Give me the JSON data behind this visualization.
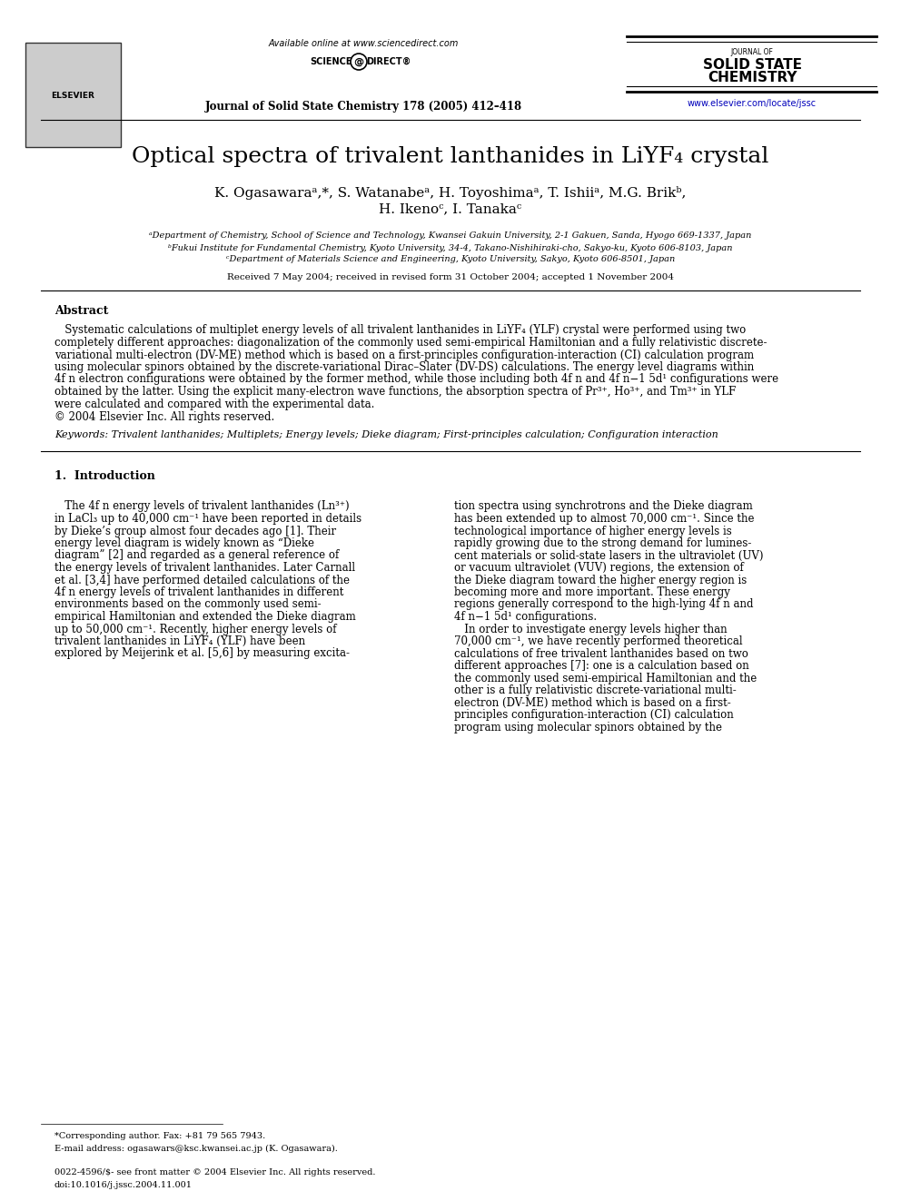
{
  "title": "Optical spectra of trivalent lanthanides in LiYF₄ crystal",
  "authors_line1": "K. Ogasawaraᵃ,*, S. Watanabeᵃ, H. Toyoshimaᵃ, T. Ishiiᵃ, M.G. Brikᵇ,",
  "authors_line2": "H. Ikenoᶜ, I. Tanakaᶜ",
  "affil_a": "ᵃDepartment of Chemistry, School of Science and Technology, Kwansei Gakuin University, 2-1 Gakuen, Sanda, Hyogo 669-1337, Japan",
  "affil_b": "ᵇFukui Institute for Fundamental Chemistry, Kyoto University, 34-4, Takano-Nishihiraki-cho, Sakyo-ku, Kyoto 606-8103, Japan",
  "affil_c": "ᶜDepartment of Materials Science and Engineering, Kyoto University, Sakyo, Kyoto 606-8501, Japan",
  "received": "Received 7 May 2004; received in revised form 31 October 2004; accepted 1 November 2004",
  "journal_header": "Journal of Solid State Chemistry 178 (2005) 412–418",
  "available_online": "Available online at www.sciencedirect.com",
  "journal_name_small": "JOURNAL OF",
  "journal_name_line2": "SOLID STATE",
  "journal_name_line3": "CHEMISTRY",
  "website": "www.elsevier.com/locate/jssc",
  "copyright": "© 2004 Elsevier Inc. All rights reserved.",
  "abstract_title": "Abstract",
  "keywords_text": "Keywords: Trivalent lanthanides; Multiplets; Energy levels; Dieke diagram; First-principles calculation; Configuration interaction",
  "section1_title": "1.  Introduction",
  "footnote_star": "*Corresponding author. Fax: +81 79 565 7943.",
  "footnote_email": "E-mail address: ogasawars@ksc.kwansei.ac.jp (K. Ogasawara).",
  "issn": "0022-4596/$- see front matter © 2004 Elsevier Inc. All rights reserved.",
  "doi": "doi:10.1016/j.jssc.2004.11.001",
  "bg_color": "#ffffff",
  "text_color": "#000000",
  "blue_color": "#0000bb",
  "abstract_lines": [
    "   Systematic calculations of multiplet energy levels of all trivalent lanthanides in LiYF₄ (YLF) crystal were performed using two",
    "completely different approaches: diagonalization of the commonly used semi-empirical Hamiltonian and a fully relativistic discrete-",
    "variational multi-electron (DV-ME) method which is based on a first-principles configuration-interaction (CI) calculation program",
    "using molecular spinors obtained by the discrete-variational Dirac–Slater (DV-DS) calculations. The energy level diagrams within",
    "4f n electron configurations were obtained by the former method, while those including both 4f n and 4f n−1 5d¹ configurations were",
    "obtained by the latter. Using the explicit many-electron wave functions, the absorption spectra of Pr³⁺, Ho³⁺, and Tm³⁺ in YLF",
    "were calculated and compared with the experimental data."
  ],
  "left_col_lines": [
    "   The 4f n energy levels of trivalent lanthanides (Ln³⁺)",
    "in LaCl₃ up to 40,000 cm⁻¹ have been reported in details",
    "by Dieke’s group almost four decades ago [1]. Their",
    "energy level diagram is widely known as “Dieke",
    "diagram” [2] and regarded as a general reference of",
    "the energy levels of trivalent lanthanides. Later Carnall",
    "et al. [3,4] have performed detailed calculations of the",
    "4f n energy levels of trivalent lanthanides in different",
    "environments based on the commonly used semi-",
    "empirical Hamiltonian and extended the Dieke diagram",
    "up to 50,000 cm⁻¹. Recently, higher energy levels of",
    "trivalent lanthanides in LiYF₄ (YLF) have been",
    "explored by Meijerink et al. [5,6] by measuring excita-"
  ],
  "right_col_lines": [
    "tion spectra using synchrotrons and the Dieke diagram",
    "has been extended up to almost 70,000 cm⁻¹. Since the",
    "technological importance of higher energy levels is",
    "rapidly growing due to the strong demand for lumines-",
    "cent materials or solid-state lasers in the ultraviolet (UV)",
    "or vacuum ultraviolet (VUV) regions, the extension of",
    "the Dieke diagram toward the higher energy region is",
    "becoming more and more important. These energy",
    "regions generally correspond to the high-lying 4f n and",
    "4f n−1 5d¹ configurations.",
    "   In order to investigate energy levels higher than",
    "70,000 cm⁻¹, we have recently performed theoretical",
    "calculations of free trivalent lanthanides based on two",
    "different approaches [7]: one is a calculation based on",
    "the commonly used semi-empirical Hamiltonian and the",
    "other is a fully relativistic discrete-variational multi-",
    "electron (DV-ME) method which is based on a first-",
    "principles configuration-interaction (CI) calculation",
    "program using molecular spinors obtained by the"
  ]
}
